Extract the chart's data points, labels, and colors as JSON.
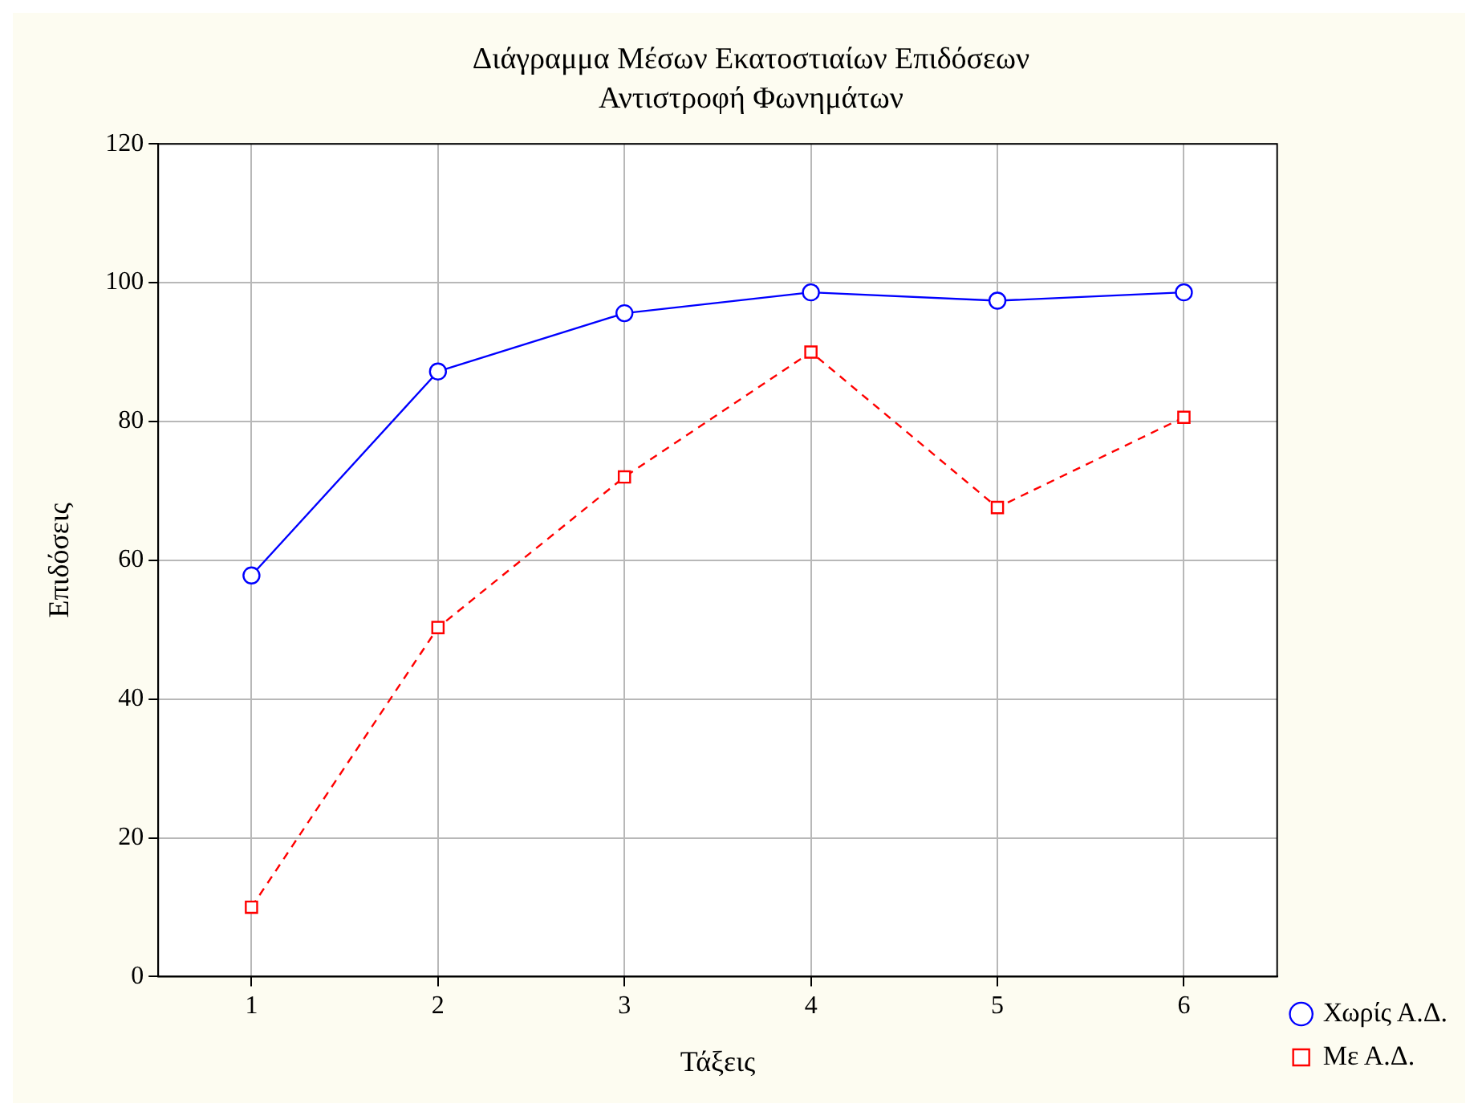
{
  "chart_data": {
    "type": "line",
    "title": "Διάγραμμα Μέσων Εκατοστιαίων Επιδόσεων",
    "subtitle": "Αντιστροφή Φωνημάτων",
    "xlabel": "Τάξεις",
    "ylabel": "Επιδόσεις",
    "x": [
      1,
      2,
      3,
      4,
      5,
      6
    ],
    "xlim": [
      0.5,
      6.5
    ],
    "xticks": [
      1,
      2,
      3,
      4,
      5,
      6
    ],
    "ylim": [
      0,
      120
    ],
    "yticks": [
      0,
      20,
      40,
      60,
      80,
      100,
      120
    ],
    "series": [
      {
        "name": "Χωρίς Α.Δ.",
        "color": "#0000ff",
        "values": [
          57.8,
          87.2,
          95.6,
          98.6,
          97.4,
          98.6
        ],
        "marker": "circle",
        "line_style": "solid"
      },
      {
        "name": "Με Α.Δ.",
        "color": "#ff0000",
        "values": [
          10,
          50.3,
          72,
          90,
          67.6,
          80.6
        ],
        "marker": "square",
        "line_style": "dashed"
      }
    ],
    "grid": true,
    "legend": "bottom right"
  }
}
